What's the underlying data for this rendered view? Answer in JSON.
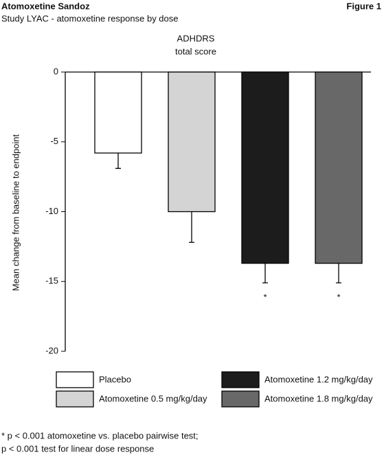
{
  "header": {
    "title": "Atomoxetine Sandoz",
    "figure": "Figure 1",
    "subtitle": "Study LYAC - atomoxetine response by dose"
  },
  "chart_data": {
    "type": "bar",
    "title": [
      "ADHDRS",
      "total score"
    ],
    "y_label": "Mean change from baseline to endpoint",
    "categories": [
      "Placebo",
      "Atomoxetine 0.5 mg/kg/day",
      "Atomoxetine 1.2 mg/kg/day",
      "Atomoxetine 1.8 mg/kg/day"
    ],
    "values": [
      -5.8,
      -10,
      -13.7,
      -13.7
    ],
    "errors": [
      1.1,
      2.2,
      1.4,
      1.4
    ],
    "colors": [
      "#ffffff",
      "#d4d4d4",
      "#1c1c1c",
      "#686868"
    ],
    "annotations": [
      {
        "category": "Atomoxetine 1.2 mg/kg/day",
        "text": "*"
      },
      {
        "category": "Atomoxetine 1.8 mg/kg/day",
        "text": "*"
      }
    ],
    "ylim": [
      -20,
      0
    ],
    "yticks": [
      0,
      -5,
      -10,
      -15,
      -20
    ]
  },
  "footnote": [
    "* p < 0.001 atomoxetine vs. placebo pairwise test;",
    "p < 0.001 test for linear dose response"
  ]
}
